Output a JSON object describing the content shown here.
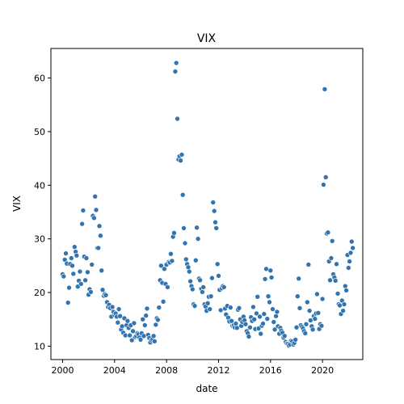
{
  "chart_data": {
    "type": "scatter",
    "title": "VIX",
    "xlabel": "date",
    "ylabel": "VIX",
    "xlim": [
      1999.1,
      2023.1
    ],
    "ylim": [
      7.5,
      65.5
    ],
    "x_ticks": [
      2000,
      2004,
      2008,
      2012,
      2016,
      2020
    ],
    "x_tick_labels": [
      "2000",
      "2004",
      "2008",
      "2012",
      "2016",
      "2020"
    ],
    "y_ticks": [
      10,
      20,
      30,
      40,
      50,
      60
    ],
    "y_tick_labels": [
      "10",
      "20",
      "30",
      "40",
      "50",
      "60"
    ],
    "grid": false,
    "legend": "none",
    "marker_color": "#3274b0",
    "x": [
      2000.0,
      2000.08,
      2000.17,
      2000.25,
      2000.33,
      2000.42,
      2000.5,
      2000.58,
      2000.67,
      2000.75,
      2000.83,
      2000.92,
      2001.0,
      2001.08,
      2001.17,
      2001.25,
      2001.33,
      2001.42,
      2001.5,
      2001.58,
      2001.67,
      2001.75,
      2001.83,
      2001.92,
      2002.0,
      2002.08,
      2002.17,
      2002.25,
      2002.33,
      2002.42,
      2002.5,
      2002.58,
      2002.67,
      2002.75,
      2002.83,
      2002.92,
      2003.0,
      2003.08,
      2003.17,
      2003.25,
      2003.33,
      2003.42,
      2003.5,
      2003.58,
      2003.67,
      2003.75,
      2003.83,
      2003.92,
      2004.0,
      2004.08,
      2004.17,
      2004.25,
      2004.33,
      2004.42,
      2004.5,
      2004.58,
      2004.67,
      2004.75,
      2004.83,
      2004.92,
      2005.0,
      2005.08,
      2005.17,
      2005.25,
      2005.33,
      2005.42,
      2005.5,
      2005.58,
      2005.67,
      2005.75,
      2005.83,
      2005.92,
      2006.0,
      2006.08,
      2006.17,
      2006.25,
      2006.33,
      2006.42,
      2006.5,
      2006.58,
      2006.67,
      2006.75,
      2006.83,
      2006.92,
      2007.0,
      2007.08,
      2007.17,
      2007.25,
      2007.33,
      2007.42,
      2007.5,
      2007.58,
      2007.67,
      2007.75,
      2007.83,
      2007.92,
      2008.0,
      2008.08,
      2008.17,
      2008.25,
      2008.33,
      2008.42,
      2008.5,
      2008.58,
      2008.67,
      2008.75,
      2008.83,
      2008.92,
      2009.0,
      2009.08,
      2009.17,
      2009.25,
      2009.33,
      2009.42,
      2009.5,
      2009.58,
      2009.67,
      2009.75,
      2009.83,
      2009.92,
      2010.0,
      2010.08,
      2010.17,
      2010.25,
      2010.33,
      2010.42,
      2010.5,
      2010.58,
      2010.67,
      2010.75,
      2010.83,
      2010.92,
      2011.0,
      2011.08,
      2011.17,
      2011.25,
      2011.33,
      2011.42,
      2011.5,
      2011.58,
      2011.67,
      2011.75,
      2011.83,
      2011.92,
      2012.0,
      2012.08,
      2012.17,
      2012.25,
      2012.33,
      2012.42,
      2012.5,
      2012.58,
      2012.67,
      2012.75,
      2012.83,
      2012.92,
      2013.0,
      2013.08,
      2013.17,
      2013.25,
      2013.33,
      2013.42,
      2013.5,
      2013.58,
      2013.67,
      2013.75,
      2013.83,
      2013.92,
      2014.0,
      2014.08,
      2014.17,
      2014.25,
      2014.33,
      2014.42,
      2014.5,
      2014.58,
      2014.67,
      2014.75,
      2014.83,
      2014.92,
      2015.0,
      2015.08,
      2015.17,
      2015.25,
      2015.33,
      2015.42,
      2015.5,
      2015.58,
      2015.67,
      2015.75,
      2015.83,
      2015.92,
      2016.0,
      2016.08,
      2016.17,
      2016.25,
      2016.33,
      2016.42,
      2016.5,
      2016.58,
      2016.67,
      2016.75,
      2016.83,
      2016.92,
      2017.0,
      2017.08,
      2017.17,
      2017.25,
      2017.33,
      2017.42,
      2017.5,
      2017.58,
      2017.67,
      2017.75,
      2017.83,
      2017.92,
      2018.0,
      2018.08,
      2018.17,
      2018.25,
      2018.33,
      2018.42,
      2018.5,
      2018.58,
      2018.67,
      2018.75,
      2018.83,
      2018.92,
      2019.0,
      2019.08,
      2019.17,
      2019.25,
      2019.33,
      2019.42,
      2019.5,
      2019.58,
      2019.67,
      2019.75,
      2019.83,
      2019.92,
      2020.0,
      2020.08,
      2020.17,
      2020.25,
      2020.33,
      2020.42,
      2020.5,
      2020.58,
      2020.67,
      2020.75,
      2020.83,
      2020.92,
      2021.0,
      2021.08,
      2021.17,
      2021.25,
      2021.33,
      2021.42,
      2021.5,
      2021.58,
      2021.67,
      2021.75,
      2021.83,
      2021.92,
      2022.0,
      2022.08,
      2022.17,
      2022.25,
      2022.33
    ],
    "y": [
      23.4,
      23.0,
      26.1,
      27.3,
      25.4,
      18.1,
      20.9,
      25.3,
      26.4,
      25.0,
      23.5,
      28.5,
      27.6,
      26.9,
      21.1,
      22.2,
      23.9,
      21.6,
      32.8,
      35.3,
      26.7,
      22.3,
      26.4,
      23.8,
      19.6,
      20.6,
      20.1,
      25.2,
      34.3,
      33.9,
      37.9,
      35.4,
      28.3,
      28.3,
      32.4,
      30.6,
      24.1,
      20.5,
      19.4,
      19.7,
      19.5,
      18.2,
      17.3,
      17.7,
      17.1,
      15.5,
      17.3,
      16.4,
      15.8,
      16.1,
      15.5,
      14.4,
      16.9,
      15.6,
      13.1,
      13.7,
      12.5,
      15.2,
      12.0,
      13.9,
      14.7,
      13.4,
      12.0,
      13.9,
      11.1,
      12.8,
      14.3,
      11.7,
      11.9,
      12.4,
      12.2,
      11.6,
      11.2,
      12.4,
      15.0,
      11.9,
      13.9,
      15.7,
      17.0,
      12.1,
      11.5,
      10.7,
      11.1,
      11.3,
      11.9,
      10.9,
      14.0,
      15.2,
      14.9,
      17.2,
      22.3,
      25.0,
      21.8,
      18.3,
      24.4,
      21.6,
      25.2,
      21.0,
      25.7,
      25.6,
      27.2,
      25.9,
      30.4,
      31.1,
      61.2,
      62.8,
      52.4,
      44.8,
      45.4,
      44.6,
      45.7,
      38.2,
      32.0,
      29.2,
      26.2,
      25.3,
      24.7,
      23.9,
      22.1,
      21.2,
      20.6,
      17.8,
      17.5,
      26.0,
      32.1,
      30.0,
      22.6,
      22.3,
      20.7,
      20.1,
      21.0,
      17.8,
      17.4,
      16.6,
      18.0,
      19.2,
      16.9,
      19.3,
      22.7,
      36.8,
      35.2,
      33.1,
      32.0,
      25.3,
      23.1,
      20.5,
      16.7,
      20.8,
      21.2,
      21.0,
      17.0,
      15.9,
      17.5,
      15.3,
      14.6,
      17.2,
      14.7,
      13.8,
      13.9,
      13.5,
      14.2,
      13.4,
      16.8,
      17.1,
      15.0,
      13.8,
      14.5,
      15.5,
      14.8,
      14.1,
      12.8,
      12.4,
      11.8,
      13.5,
      15.4,
      14.7,
      17.3,
      15.0,
      13.2,
      16.1,
      19.2,
      13.3,
      15.5,
      12.3,
      13.8,
      14.2,
      16.0,
      22.5,
      24.4,
      15.1,
      19.3,
      18.2,
      24.1,
      22.8,
      16.9,
      14.5,
      13.1,
      15.6,
      16.4,
      13.7,
      12.3,
      13.4,
      12.9,
      12.5,
      11.6,
      11.9,
      10.8,
      10.5,
      10.4,
      10.1,
      10.3,
      11.0,
      10.9,
      10.3,
      10.6,
      11.2,
      13.5,
      19.3,
      22.6,
      17.1,
      13.9,
      13.6,
      13.3,
      12.8,
      12.4,
      14.1,
      18.2,
      25.2,
      16.6,
      14.8,
      13.7,
      13.1,
      15.6,
      15.1,
      16.1,
      19.7,
      16.2,
      13.2,
      14.1,
      13.8,
      18.8,
      40.1,
      57.9,
      41.5,
      31.0,
      31.2,
      25.8,
      22.3,
      26.4,
      29.6,
      23.4,
      22.8,
      22.2,
      25.3,
      19.8,
      17.8,
      17.6,
      16.0,
      18.5,
      16.6,
      17.8,
      21.2,
      20.4,
      27.0,
      24.6,
      25.8,
      27.4,
      29.5,
      28.3
    ]
  }
}
